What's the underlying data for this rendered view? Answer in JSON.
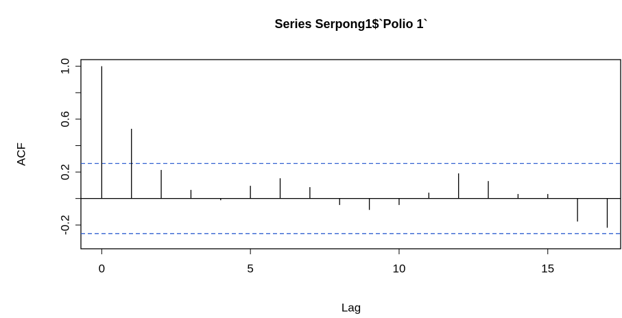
{
  "chart_data": {
    "type": "acf",
    "title": "Series  Serpong1$`Polio 1`",
    "x_label": "Lag",
    "y_label": "ACF",
    "x": [
      0,
      1,
      2,
      3,
      4,
      5,
      6,
      7,
      8,
      9,
      10,
      11,
      12,
      13,
      14,
      15,
      16,
      17
    ],
    "values": [
      1.0,
      0.527,
      0.216,
      0.065,
      -0.013,
      0.096,
      0.153,
      0.086,
      -0.049,
      -0.086,
      -0.049,
      0.044,
      0.19,
      0.132,
      0.034,
      0.034,
      -0.174,
      -0.221
    ],
    "color": "#000000",
    "confidence_bounds": [
      0.265,
      -0.265
    ],
    "confidence_color": "#2f5fd0",
    "xlim": [
      -0.7,
      17.45
    ],
    "ylim": [
      -0.38,
      1.05
    ],
    "xticks": [
      0,
      5,
      10,
      15
    ],
    "yticks": [
      -0.2,
      0.2,
      0.6,
      {
        "value": 1,
        "label": "1.0"
      }
    ],
    "minor_yticks": [
      0,
      0.4,
      0.8
    ]
  }
}
